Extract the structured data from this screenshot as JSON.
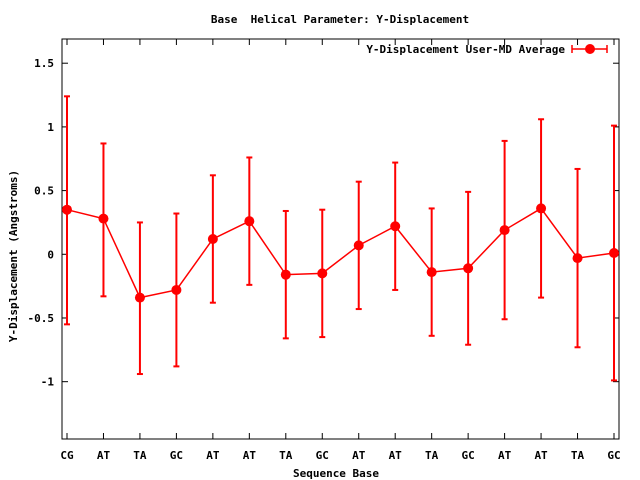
{
  "chart_data": {
    "type": "line",
    "title": "Base  Helical Parameter: Y-Displacement",
    "xlabel": "Sequence Base",
    "ylabel": "Y-Displacement (Angstroms)",
    "categories": [
      "CG",
      "AT",
      "TA",
      "GC",
      "AT",
      "AT",
      "TA",
      "GC",
      "AT",
      "AT",
      "TA",
      "GC",
      "AT",
      "AT",
      "TA",
      "GC"
    ],
    "ylim": [
      -1.45,
      1.69
    ],
    "yticks": [
      {
        "value": 1.5,
        "label": "1.5"
      },
      {
        "value": 1,
        "label": "1"
      },
      {
        "value": 0.5,
        "label": "0.5"
      },
      {
        "value": 0,
        "label": "0"
      },
      {
        "value": -0.5,
        "label": "-0.5"
      },
      {
        "value": -1,
        "label": "-1"
      }
    ],
    "legend_position": "top-right",
    "series": [
      {
        "name": "Y-Displacement User-MD Average",
        "color": "#ff0000",
        "values": [
          0.35,
          0.28,
          -0.34,
          -0.28,
          0.12,
          0.26,
          -0.16,
          -0.15,
          0.07,
          0.22,
          -0.14,
          -0.11,
          0.19,
          0.36,
          -0.03,
          0.01
        ],
        "err_low": [
          -0.55,
          -0.33,
          -0.94,
          -0.88,
          -0.38,
          -0.24,
          -0.66,
          -0.65,
          -0.43,
          -0.28,
          -0.64,
          -0.71,
          -0.51,
          -0.34,
          -0.73,
          -0.99
        ],
        "err_high": [
          1.24,
          0.87,
          0.25,
          0.32,
          0.62,
          0.76,
          0.34,
          0.35,
          0.57,
          0.72,
          0.36,
          0.49,
          0.89,
          1.06,
          0.67,
          1.01
        ]
      }
    ]
  }
}
